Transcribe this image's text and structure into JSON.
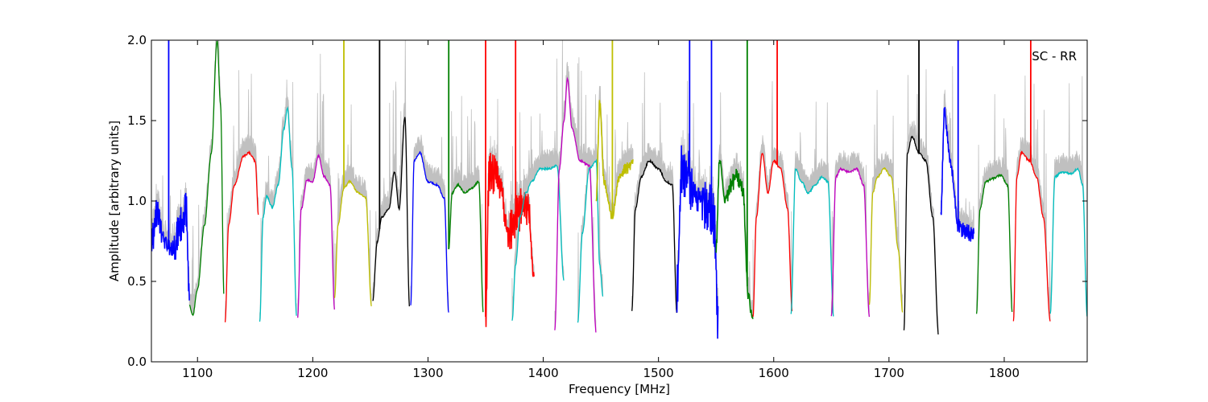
{
  "chart_data": {
    "type": "line",
    "title": "",
    "annotation": "SC - RR",
    "xlabel": "Frequency [MHz]",
    "ylabel": "Amplitude [arbitrary units]",
    "xlim": [
      1060,
      1872
    ],
    "ylim": [
      0.0,
      2.0
    ],
    "xticks": [
      1100,
      1200,
      1300,
      1400,
      1500,
      1600,
      1700,
      1800
    ],
    "yticks": [
      0.0,
      0.5,
      1.0,
      1.5,
      2.0
    ],
    "xtick_labels": [
      "1100",
      "1200",
      "1300",
      "1400",
      "1500",
      "1600",
      "1700",
      "1800"
    ],
    "ytick_labels": [
      "0.0",
      "0.5",
      "1.0",
      "1.5",
      "2.0"
    ],
    "grid": false,
    "background_color": "#c0c0c0",
    "color_cycle": [
      "#0000ff",
      "#008000",
      "#ff0000",
      "#00bfbf",
      "#bf00bf",
      "#bfbf00",
      "#000000"
    ],
    "bands": [
      {
        "color": "#0000ff",
        "x": [
          1060,
          1065,
          1070,
          1075,
          1080,
          1085,
          1090,
          1093
        ],
        "y": [
          0.75,
          0.95,
          0.8,
          0.7,
          0.72,
          0.85,
          0.95,
          0.42
        ],
        "noise": 0.12,
        "spike": [
          1075,
          2.0
        ]
      },
      {
        "color": "#008000",
        "x": [
          1093,
          1096,
          1100,
          1106,
          1112,
          1117,
          1120,
          1123
        ],
        "y": [
          0.35,
          0.29,
          0.45,
          0.85,
          1.3,
          2.0,
          1.6,
          0.4
        ]
      },
      {
        "color": "#ff0000",
        "x": [
          1124,
          1127,
          1132,
          1140,
          1145,
          1150,
          1153
        ],
        "y": [
          0.25,
          0.85,
          1.1,
          1.28,
          1.3,
          1.25,
          0.9
        ]
      },
      {
        "color": "#00bfbf",
        "x": [
          1154,
          1157,
          1160,
          1165,
          1170,
          1175,
          1178,
          1182,
          1186
        ],
        "y": [
          0.25,
          0.9,
          1.03,
          0.96,
          1.1,
          1.45,
          1.58,
          1.2,
          0.28
        ]
      },
      {
        "color": "#bf00bf",
        "x": [
          1187,
          1190,
          1195,
          1200,
          1205,
          1210,
          1215,
          1219
        ],
        "y": [
          0.28,
          0.95,
          1.13,
          1.12,
          1.28,
          1.15,
          1.1,
          0.32
        ]
      },
      {
        "color": "#bfbf00",
        "x": [
          1219,
          1222,
          1227,
          1232,
          1240,
          1246,
          1251
        ],
        "y": [
          0.4,
          0.85,
          1.08,
          1.12,
          1.05,
          1.02,
          0.35
        ],
        "spike": [
          1227,
          2.0
        ]
      },
      {
        "color": "#000000",
        "x": [
          1252,
          1256,
          1260,
          1266,
          1271,
          1275,
          1280,
          1284
        ],
        "y": [
          0.38,
          0.75,
          0.9,
          0.95,
          1.18,
          0.95,
          1.52,
          0.34
        ],
        "spike": [
          1258,
          2.0
        ]
      },
      {
        "color": "#0000ff",
        "x": [
          1285,
          1288,
          1293,
          1300,
          1308,
          1314,
          1318
        ],
        "y": [
          0.35,
          1.25,
          1.3,
          1.12,
          1.1,
          1.02,
          0.3
        ]
      },
      {
        "color": "#008000",
        "x": [
          1318,
          1321,
          1326,
          1332,
          1338,
          1344,
          1348
        ],
        "y": [
          0.7,
          1.05,
          1.1,
          1.05,
          1.08,
          1.12,
          0.3
        ],
        "spike": [
          1318,
          2.0
        ]
      },
      {
        "color": "#ff0000",
        "x": [
          1350,
          1353,
          1358,
          1363,
          1370,
          1380,
          1387,
          1392
        ],
        "y": [
          0.28,
          1.15,
          1.18,
          1.07,
          0.8,
          0.95,
          0.95,
          0.55
        ],
        "noise": 0.15,
        "spike": [
          1350,
          2.0
        ],
        "spike2": [
          1376,
          2.0
        ]
      },
      {
        "color": "#00bfbf",
        "x": [
          1373,
          1376,
          1380,
          1385,
          1390,
          1397,
          1405,
          1412,
          1418
        ],
        "y": [
          0.25,
          0.6,
          0.9,
          1.05,
          1.12,
          1.2,
          1.2,
          1.22,
          0.5
        ]
      },
      {
        "color": "#bf00bf",
        "x": [
          1410,
          1414,
          1418,
          1421,
          1425,
          1432,
          1440,
          1446
        ],
        "y": [
          0.2,
          1.2,
          1.5,
          1.76,
          1.45,
          1.25,
          1.22,
          0.18
        ]
      },
      {
        "color": "#00bfbf",
        "x": [
          1430,
          1434,
          1440,
          1446,
          1449,
          1452
        ],
        "y": [
          0.25,
          0.8,
          1.2,
          1.25,
          0.6,
          0.4
        ]
      },
      {
        "color": "#bfbf00",
        "x": [
          1446,
          1449,
          1453,
          1460,
          1466,
          1472,
          1478
        ],
        "y": [
          1.0,
          1.62,
          1.1,
          0.9,
          1.15,
          1.2,
          1.25
        ],
        "noise": 0.04,
        "spike": [
          1460,
          2.0
        ]
      },
      {
        "color": "#000000",
        "x": [
          1477,
          1480,
          1485,
          1492,
          1500,
          1507,
          1512,
          1516
        ],
        "y": [
          0.32,
          0.95,
          1.15,
          1.25,
          1.2,
          1.12,
          1.1,
          0.3
        ]
      },
      {
        "color": "#0000ff",
        "x": [
          1516,
          1520,
          1525,
          1530,
          1537,
          1543,
          1548,
          1552
        ],
        "y": [
          0.45,
          1.22,
          1.18,
          1.05,
          1.0,
          0.95,
          0.9,
          0.22
        ],
        "noise": 0.18,
        "spike": [
          1527,
          2.0
        ],
        "spike2": [
          1546,
          2.0
        ]
      },
      {
        "color": "#008000",
        "x": [
          1550,
          1553,
          1558,
          1563,
          1568,
          1573,
          1578,
          1582
        ],
        "y": [
          0.7,
          1.25,
          1.0,
          1.1,
          1.15,
          1.08,
          0.4,
          0.26
        ],
        "noise": 0.06,
        "spike": [
          1577,
          2.0
        ]
      },
      {
        "color": "#ff0000",
        "x": [
          1582,
          1585,
          1590,
          1595,
          1600,
          1606,
          1612,
          1616
        ],
        "y": [
          0.28,
          0.9,
          1.3,
          1.05,
          1.25,
          1.2,
          0.95,
          0.32
        ],
        "spike": [
          1603,
          2.0
        ]
      },
      {
        "color": "#00bfbf",
        "x": [
          1615,
          1619,
          1624,
          1630,
          1636,
          1642,
          1647,
          1652
        ],
        "y": [
          0.3,
          1.2,
          1.12,
          1.05,
          1.1,
          1.15,
          1.12,
          0.28
        ]
      },
      {
        "color": "#bf00bf",
        "x": [
          1650,
          1654,
          1658,
          1665,
          1672,
          1678,
          1683
        ],
        "y": [
          0.28,
          1.15,
          1.2,
          1.18,
          1.2,
          1.1,
          0.28
        ]
      },
      {
        "color": "#bfbf00",
        "x": [
          1683,
          1686,
          1690,
          1696,
          1702,
          1708,
          1712
        ],
        "y": [
          0.35,
          1.05,
          1.15,
          1.2,
          1.15,
          0.7,
          0.3
        ]
      },
      {
        "color": "#000000",
        "x": [
          1713,
          1716,
          1720,
          1726,
          1732,
          1738,
          1743
        ],
        "y": [
          0.2,
          1.3,
          1.4,
          1.3,
          1.25,
          0.9,
          0.17
        ],
        "spike": [
          1726,
          2.0
        ]
      },
      {
        "color": "#0000ff",
        "x": [
          1745,
          1748,
          1753,
          1760,
          1767,
          1774
        ],
        "y": [
          0.9,
          1.55,
          1.25,
          0.85,
          0.8,
          0.8
        ],
        "noise": 0.06,
        "spike": [
          1760,
          2.0
        ]
      },
      {
        "color": "#008000",
        "x": [
          1776,
          1779,
          1784,
          1790,
          1797,
          1803,
          1807
        ],
        "y": [
          0.3,
          0.95,
          1.12,
          1.14,
          1.16,
          1.1,
          0.3
        ]
      },
      {
        "color": "#ff0000",
        "x": [
          1808,
          1811,
          1815,
          1822,
          1828,
          1834,
          1840
        ],
        "y": [
          0.25,
          1.15,
          1.3,
          1.25,
          1.15,
          0.9,
          0.25
        ],
        "spike": [
          1823,
          2.0
        ]
      },
      {
        "color": "#00bfbf",
        "x": [
          1840,
          1844,
          1850,
          1858,
          1864,
          1868,
          1872
        ],
        "y": [
          0.3,
          1.15,
          1.18,
          1.17,
          1.2,
          1.1,
          0.28
        ]
      }
    ]
  }
}
